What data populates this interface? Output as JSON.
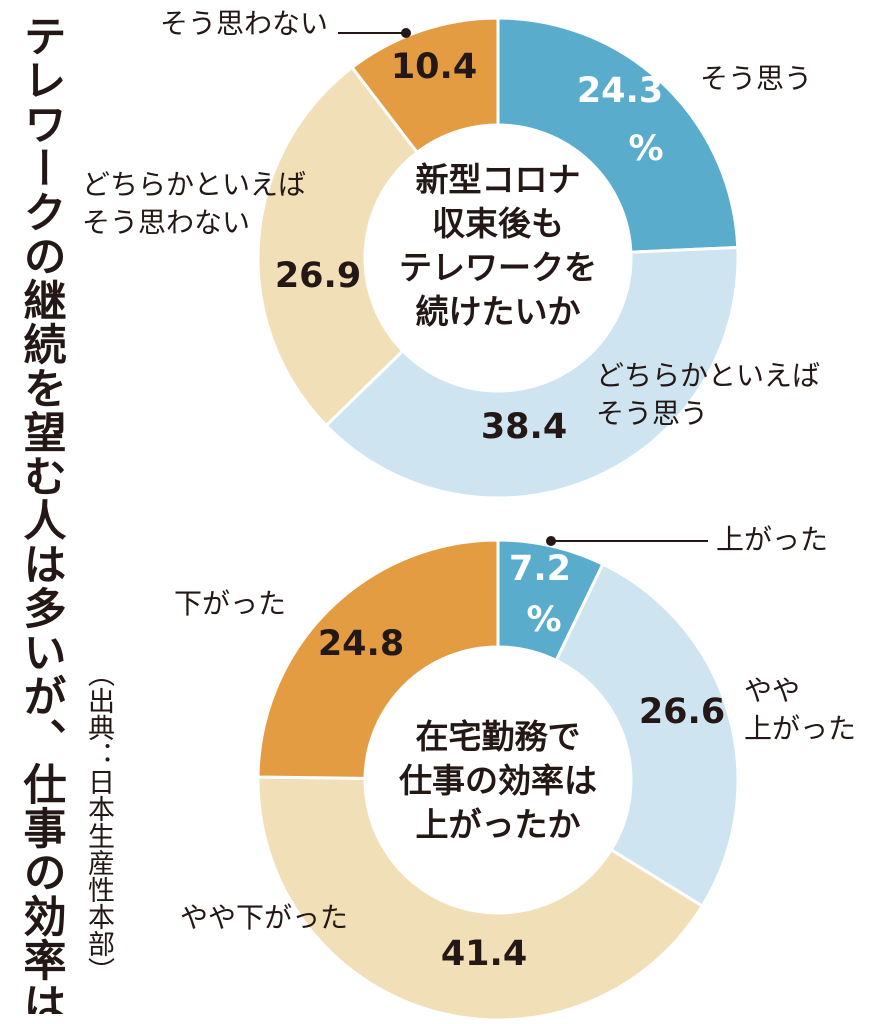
{
  "title": "テレワークの継続を望む人は多いが、仕事の効率は…",
  "source": "（出典：日本生産性本部）",
  "colors": {
    "dark_blue": "#5aaccc",
    "light_blue": "#cfe4f1",
    "light_tan": "#f1dfb7",
    "orange": "#e39c42",
    "text": "#231815"
  },
  "chart_data": [
    {
      "type": "pie",
      "title": "新型コロナ収束後もテレワークを続けたいか",
      "title_lines": [
        "新型コロナ",
        "収束後も",
        "テレワークを",
        "続けたいか"
      ],
      "unit": "%",
      "slices": [
        {
          "label": "そう思う",
          "label_lines": [
            "そう思う"
          ],
          "value": 24.3,
          "value_text": "24.3",
          "color": "#5aaccc"
        },
        {
          "label": "どちらかといえばそう思う",
          "label_lines": [
            "どちらかといえば",
            "そう思う"
          ],
          "value": 38.4,
          "value_text": "38.4",
          "color": "#cfe4f1"
        },
        {
          "label": "どちらかといえばそう思わない",
          "label_lines": [
            "どちらかといえば",
            "そう思わない"
          ],
          "value": 26.9,
          "value_text": "26.9",
          "color": "#f1dfb7"
        },
        {
          "label": "そう思わない",
          "label_lines": [
            "そう思わない"
          ],
          "value": 10.4,
          "value_text": "10.4",
          "color": "#e39c42"
        }
      ]
    },
    {
      "type": "pie",
      "title": "在宅勤務で仕事の効率は上がったか",
      "title_lines": [
        "在宅勤務で",
        "仕事の効率は",
        "上がったか"
      ],
      "unit": "%",
      "slices": [
        {
          "label": "上がった",
          "label_lines": [
            "上がった"
          ],
          "value": 7.2,
          "value_text": "7.2",
          "color": "#5aaccc"
        },
        {
          "label": "やや上がった",
          "label_lines": [
            "やや",
            "上がった"
          ],
          "value": 26.6,
          "value_text": "26.6",
          "color": "#cfe4f1"
        },
        {
          "label": "やや下がった",
          "label_lines": [
            "やや下がった"
          ],
          "value": 41.4,
          "value_text": "41.4",
          "color": "#f1dfb7"
        },
        {
          "label": "下がった",
          "label_lines": [
            "下がった"
          ],
          "value": 24.8,
          "value_text": "24.8",
          "color": "#e39c42"
        }
      ]
    }
  ]
}
